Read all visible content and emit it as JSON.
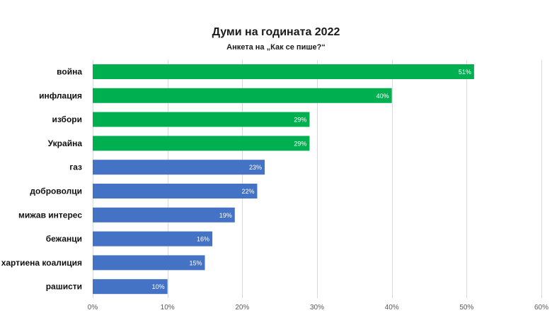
{
  "chart_data": {
    "type": "bar",
    "orientation": "horizontal",
    "title": "Думи на годината 2022",
    "subtitle": "Анкета на „Как се пише?“",
    "categories": [
      "война",
      "инфлация",
      "избори",
      "Украйна",
      "газ",
      "доброволци",
      "мижав интерес",
      "бежанци",
      "хартиена коалиция",
      "рашисти"
    ],
    "values": [
      51,
      40,
      29,
      29,
      23,
      22,
      19,
      16,
      15,
      10
    ],
    "value_labels": [
      "51%",
      "40%",
      "29%",
      "29%",
      "23%",
      "22%",
      "19%",
      "16%",
      "15%",
      "10%"
    ],
    "highlight_count": 4,
    "xlim": [
      0,
      60
    ],
    "x_ticks": [
      0,
      10,
      20,
      30,
      40,
      50,
      60
    ],
    "x_tick_labels": [
      "0%",
      "10%",
      "20%",
      "30%",
      "40%",
      "50%",
      "60%"
    ],
    "grid": true,
    "legend": "none",
    "colors": {
      "highlight": "#00b050",
      "default": "#4472c4",
      "grid": "#d9d9d9"
    }
  }
}
